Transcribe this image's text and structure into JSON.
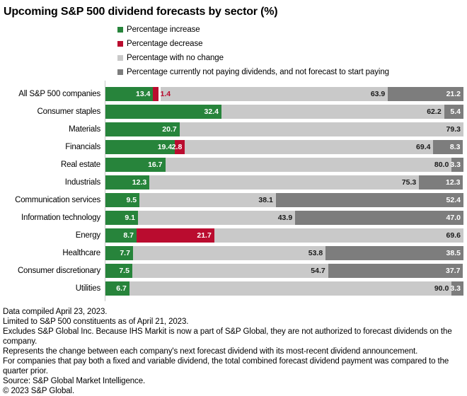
{
  "title": "Upcoming S&P 500 dividend forecasts by sector (%)",
  "colors": {
    "increase": "#27843B",
    "decrease": "#BA0C2F",
    "no_change": "#C9C9C9",
    "not_paying": "#7D7D7D",
    "axis_line": "#C8C8C8",
    "value_text_dark": "#1A1A1A",
    "value_text_light": "#FFFFFF"
  },
  "chart_data": {
    "type": "bar",
    "orientation": "horizontal",
    "stacked": true,
    "value_unit": "%",
    "xlim": [
      0,
      100
    ],
    "grid": false,
    "legend_position": "top",
    "value_labels": "on-bar",
    "title": "Upcoming S&P 500 dividend forecasts by sector (%)",
    "categories": [
      "All S&P 500 companies",
      "Consumer staples",
      "Materials",
      "Financials",
      "Real estate",
      "Industrials",
      "Communication services",
      "Information technology",
      "Energy",
      "Healthcare",
      "Consumer discretionary",
      "Utilities"
    ],
    "series": [
      {
        "key": "increase",
        "name": "Percentage increase",
        "color": "#27843B",
        "values": [
          13.4,
          32.4,
          20.7,
          19.4,
          16.7,
          12.3,
          9.5,
          9.1,
          8.7,
          7.7,
          7.5,
          6.7
        ]
      },
      {
        "key": "decrease",
        "name": "Percentage decrease",
        "color": "#BA0C2F",
        "values": [
          1.4,
          0,
          0,
          2.8,
          0,
          0,
          0,
          0,
          21.7,
          0,
          0,
          0
        ]
      },
      {
        "key": "no_change",
        "name": "Percentage with no change",
        "color": "#C9C9C9",
        "values": [
          63.9,
          62.2,
          79.3,
          69.4,
          80.0,
          75.3,
          38.1,
          43.9,
          69.6,
          53.8,
          54.7,
          90.0
        ]
      },
      {
        "key": "not_paying",
        "name": "Percentage currently not paying dividends, and not forecast to start paying",
        "color": "#7D7D7D",
        "values": [
          21.2,
          5.4,
          0,
          8.3,
          3.3,
          12.3,
          52.4,
          47.0,
          0,
          38.5,
          37.7,
          3.3
        ]
      }
    ]
  },
  "footnotes": [
    "Data compiled April 23, 2023.",
    "Limited to S&P 500 constituents as of April 21, 2023.",
    "Excludes S&P Global Inc. Because IHS Markit is now a part of S&P Global, they are not authorized to forecast dividends on the company.",
    "Represents the change between each company's next forecast dividend with its most-recent dividend announcement.",
    "For companies that pay both a fixed and variable dividend, the total combined forecast dividend payment was compared to the quarter prior.",
    "Source: S&P Global Market Intelligence.",
    "© 2023 S&P Global."
  ]
}
